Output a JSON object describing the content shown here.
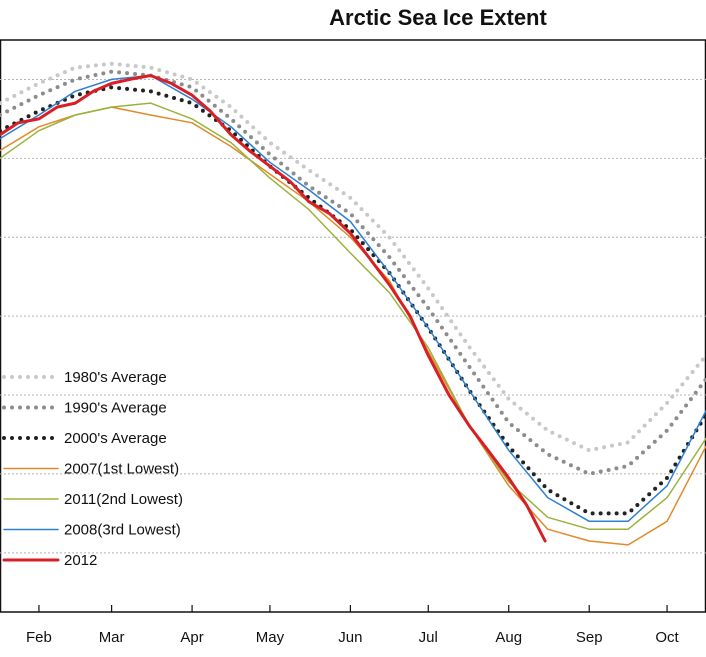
{
  "chart_data": {
    "type": "line",
    "title": "Arctic Sea Ice Extent",
    "xlabel": "",
    "ylabel": "",
    "x_unit": "day of year",
    "x_ticks": [
      {
        "label": "Feb",
        "day": 32
      },
      {
        "label": "Mar",
        "day": 60
      },
      {
        "label": "Apr",
        "day": 91
      },
      {
        "label": "May",
        "day": 121
      },
      {
        "label": "Jun",
        "day": 152
      },
      {
        "label": "Jul",
        "day": 182
      },
      {
        "label": "Aug",
        "day": 213
      },
      {
        "label": "Sep",
        "day": 244
      },
      {
        "label": "Oct",
        "day": 274
      }
    ],
    "xlim": [
      17,
      289
    ],
    "ylim": [
      2.5,
      17.0
    ],
    "y_unit": "million sq km (estimated)",
    "y_gridlines": [
      4,
      6,
      8,
      10,
      12,
      14,
      16
    ],
    "legend_position": "lower-left",
    "series": [
      {
        "name": "1980's Average",
        "color": "#c8c8c8",
        "style": "dotted",
        "width": 4,
        "x": [
          17,
          32,
          46,
          60,
          75,
          91,
          106,
          121,
          136,
          152,
          167,
          182,
          198,
          213,
          228,
          244,
          259,
          274,
          289
        ],
        "y": [
          15.4,
          15.9,
          16.3,
          16.4,
          16.3,
          16.0,
          15.3,
          14.4,
          13.7,
          13.0,
          12.0,
          10.7,
          9.2,
          7.9,
          7.1,
          6.6,
          6.8,
          7.8,
          9.0
        ]
      },
      {
        "name": "1990's Average",
        "color": "#8c8c8c",
        "style": "dotted",
        "width": 4,
        "x": [
          17,
          32,
          46,
          60,
          75,
          91,
          106,
          121,
          136,
          152,
          167,
          182,
          198,
          213,
          228,
          244,
          259,
          274,
          289
        ],
        "y": [
          15.1,
          15.6,
          16.0,
          16.2,
          16.1,
          15.8,
          15.0,
          14.1,
          13.3,
          12.6,
          11.5,
          10.2,
          8.7,
          7.3,
          6.5,
          6.0,
          6.2,
          7.1,
          8.4
        ]
      },
      {
        "name": "2000's Average",
        "color": "#222222",
        "style": "dotted",
        "width": 4,
        "x": [
          17,
          32,
          46,
          60,
          75,
          91,
          106,
          121,
          136,
          152,
          167,
          182,
          198,
          213,
          228,
          244,
          259,
          274,
          289
        ],
        "y": [
          14.7,
          15.2,
          15.6,
          15.8,
          15.7,
          15.4,
          14.7,
          13.8,
          13.0,
          12.2,
          11.1,
          9.7,
          8.1,
          6.7,
          5.6,
          5.0,
          5.0,
          5.9,
          7.5
        ]
      },
      {
        "name": "2007(1st Lowest)",
        "color": "#e28a2a",
        "style": "solid",
        "width": 1.5,
        "x": [
          17,
          32,
          46,
          60,
          75,
          91,
          106,
          121,
          136,
          152,
          167,
          182,
          198,
          213,
          228,
          244,
          259,
          274,
          289
        ],
        "y": [
          14.2,
          14.8,
          15.1,
          15.3,
          15.1,
          14.9,
          14.3,
          13.6,
          12.9,
          12.0,
          10.9,
          9.1,
          7.2,
          5.7,
          4.6,
          4.3,
          4.2,
          4.8,
          6.7
        ]
      },
      {
        "name": "2011(2nd Lowest)",
        "color": "#9bb23c",
        "style": "solid",
        "width": 1.5,
        "x": [
          17,
          32,
          46,
          60,
          75,
          91,
          106,
          121,
          136,
          152,
          167,
          182,
          198,
          213,
          228,
          244,
          259,
          274,
          289
        ],
        "y": [
          14.0,
          14.7,
          15.1,
          15.3,
          15.4,
          15.0,
          14.4,
          13.5,
          12.7,
          11.6,
          10.6,
          9.2,
          7.2,
          5.8,
          4.9,
          4.6,
          4.6,
          5.4,
          6.9
        ]
      },
      {
        "name": "2008(3rd Lowest)",
        "color": "#2c80d2",
        "style": "solid",
        "width": 1.5,
        "x": [
          17,
          32,
          46,
          60,
          75,
          91,
          106,
          121,
          136,
          152,
          167,
          182,
          198,
          213,
          228,
          244,
          259,
          274,
          289
        ],
        "y": [
          14.5,
          15.1,
          15.7,
          16.0,
          16.1,
          15.5,
          14.8,
          13.9,
          13.2,
          12.4,
          11.1,
          9.7,
          8.1,
          6.6,
          5.4,
          4.8,
          4.8,
          5.7,
          7.6
        ]
      },
      {
        "name": "2012",
        "color": "#d81f26",
        "style": "solid",
        "width": 3,
        "x": [
          17,
          24,
          32,
          39,
          46,
          53,
          60,
          67,
          75,
          83,
          91,
          98,
          106,
          113,
          121,
          129,
          136,
          144,
          152,
          159,
          167,
          175,
          182,
          190,
          198,
          205,
          213,
          220,
          227
        ],
        "y": [
          14.6,
          14.9,
          15.0,
          15.3,
          15.4,
          15.7,
          15.9,
          16.0,
          16.1,
          15.9,
          15.6,
          15.2,
          14.6,
          14.2,
          13.8,
          13.4,
          12.9,
          12.6,
          12.1,
          11.5,
          10.8,
          10.0,
          9.0,
          8.0,
          7.2,
          6.6,
          5.9,
          5.2,
          4.3
        ]
      }
    ]
  }
}
